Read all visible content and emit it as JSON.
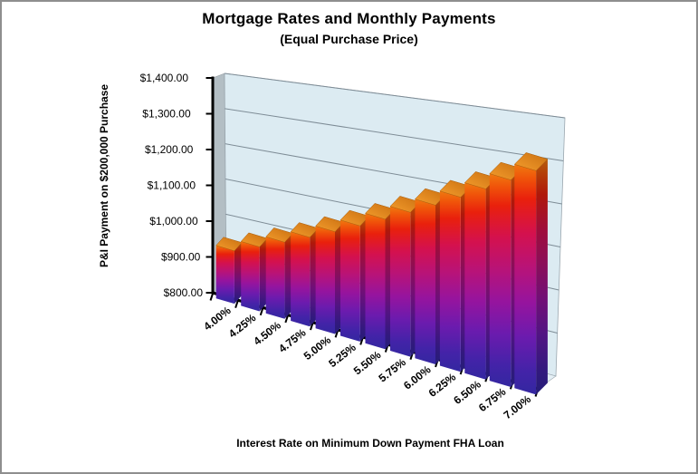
{
  "window": {
    "background": "#FFFFFF",
    "border_color": "#8E8E8E"
  },
  "chart_data": {
    "type": "bar",
    "style": "3d-column",
    "title": "Mortgage Rates and Monthly Payments",
    "subtitle": "(Equal Purchase Price)",
    "xlabel": "Interest Rate on Minimum Down Payment FHA Loan",
    "ylabel": "P&I Payment on $200,000 Purchase",
    "categories": [
      "4.00%",
      "4.25%",
      "4.50%",
      "4.75%",
      "5.00%",
      "5.25%",
      "5.50%",
      "5.75%",
      "6.00%",
      "6.25%",
      "6.50%",
      "6.75%",
      "7.00%"
    ],
    "values": [
      938,
      966,
      995,
      1024,
      1054,
      1084,
      1115,
      1146,
      1177,
      1209,
      1241,
      1274,
      1307
    ],
    "ylim": [
      800,
      1400
    ],
    "ytick_step": 100,
    "ytick_labels": [
      "$800.00",
      "$900.00",
      "$1,000.00",
      "$1,100.00",
      "$1,200.00",
      "$1,300.00",
      "$1,400.00"
    ],
    "grid": true,
    "legend": false,
    "series_name": "P&I Payment"
  },
  "colors": {
    "bar_gradient_top_to_bottom": [
      "#EF7A10",
      "#F0540A",
      "#E9200C",
      "#D4114E",
      "#B81378",
      "#96149E",
      "#6B1BAE",
      "#4323A8",
      "#3327A0"
    ],
    "bar_side_gradient_top_to_bottom": [
      "#B55C0C",
      "#B43F08",
      "#AF180A",
      "#9F0D3B",
      "#8A0E5A",
      "#700F77",
      "#501483",
      "#32197E",
      "#261D78"
    ],
    "bar_cap_light": "#F59E2E",
    "bar_cap_dark": "#C96F10",
    "back_wall": "#DCEBF2",
    "side_wall": "#B3BEC4",
    "floor": "#E4EFF5",
    "gridline": "#7E8C96",
    "axis": "#000000",
    "text": "#000000"
  }
}
